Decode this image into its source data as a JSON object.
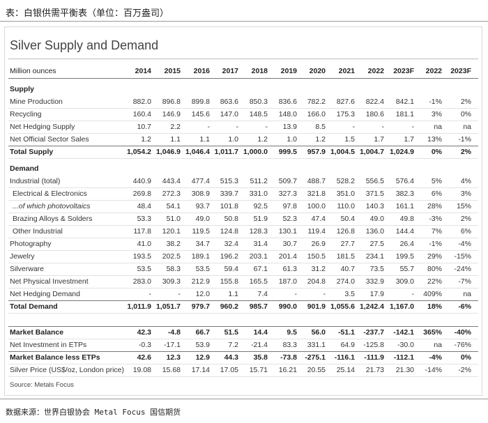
{
  "header": {
    "caption": "表：白银供需平衡表（单位：百万盎司）"
  },
  "table": {
    "title": "Silver Supply and Demand",
    "unit_label": "Million ounces",
    "columns": [
      "2014",
      "2015",
      "2016",
      "2017",
      "2018",
      "2019",
      "2020",
      "2021",
      "2022",
      "2023F",
      "2022",
      "2023F"
    ],
    "sections": [
      {
        "title": "Supply",
        "rows": [
          {
            "label": "Mine Production",
            "cells": [
              "882.0",
              "896.8",
              "899.8",
              "863.6",
              "850.3",
              "836.6",
              "782.2",
              "827.6",
              "822.4",
              "842.1",
              "-1%",
              "2%"
            ]
          },
          {
            "label": "Recycling",
            "cells": [
              "160.4",
              "146.9",
              "145.6",
              "147.0",
              "148.5",
              "148.0",
              "166.0",
              "175.3",
              "180.6",
              "181.1",
              "3%",
              "0%"
            ]
          },
          {
            "label": "Net Hedging Supply",
            "cells": [
              "10.7",
              "2.2",
              "-",
              "-",
              "-",
              "13.9",
              "8.5",
              "-",
              "-",
              "-",
              "na",
              "na"
            ]
          },
          {
            "label": "Net Official Sector Sales",
            "cells": [
              "1.2",
              "1.1",
              "1.1",
              "1.0",
              "1.2",
              "1.0",
              "1.2",
              "1.5",
              "1.7",
              "1.7",
              "13%",
              "-1%"
            ]
          },
          {
            "label": "Total Supply",
            "cells": [
              "1,054.2",
              "1,046.9",
              "1,046.4",
              "1,011.7",
              "1,000.0",
              "999.5",
              "957.9",
              "1,004.5",
              "1,004.7",
              "1,024.9",
              "0%",
              "2%"
            ]
          }
        ]
      },
      {
        "title": "Demand",
        "rows": [
          {
            "label": "Industrial (total)",
            "cells": [
              "440.9",
              "443.4",
              "477.4",
              "515.3",
              "511.2",
              "509.7",
              "488.7",
              "528.2",
              "556.5",
              "576.4",
              "5%",
              "4%"
            ]
          },
          {
            "label": "Electrical & Electronics",
            "cells": [
              "269.8",
              "272.3",
              "308.9",
              "339.7",
              "331.0",
              "327.3",
              "321.8",
              "351.0",
              "371.5",
              "382.3",
              "6%",
              "3%"
            ]
          },
          {
            "label": "...of which photovoltaics",
            "cells": [
              "48.4",
              "54.1",
              "93.7",
              "101.8",
              "92.5",
              "97.8",
              "100.0",
              "110.0",
              "140.3",
              "161.1",
              "28%",
              "15%"
            ]
          },
          {
            "label": "Brazing Alloys & Solders",
            "cells": [
              "53.3",
              "51.0",
              "49.0",
              "50.8",
              "51.9",
              "52.3",
              "47.4",
              "50.4",
              "49.0",
              "49.8",
              "-3%",
              "2%"
            ]
          },
          {
            "label": "Other Industrial",
            "cells": [
              "117.8",
              "120.1",
              "119.5",
              "124.8",
              "128.3",
              "130.1",
              "119.4",
              "126.8",
              "136.0",
              "144.4",
              "7%",
              "6%"
            ]
          },
          {
            "label": "Photography",
            "cells": [
              "41.0",
              "38.2",
              "34.7",
              "32.4",
              "31.4",
              "30.7",
              "26.9",
              "27.7",
              "27.5",
              "26.4",
              "-1%",
              "-4%"
            ]
          },
          {
            "label": "Jewelry",
            "cells": [
              "193.5",
              "202.5",
              "189.1",
              "196.2",
              "203.1",
              "201.4",
              "150.5",
              "181.5",
              "234.1",
              "199.5",
              "29%",
              "-15%"
            ]
          },
          {
            "label": "Silverware",
            "cells": [
              "53.5",
              "58.3",
              "53.5",
              "59.4",
              "67.1",
              "61.3",
              "31.2",
              "40.7",
              "73.5",
              "55.7",
              "80%",
              "-24%"
            ]
          },
          {
            "label": "Net Physical Investment",
            "cells": [
              "283.0",
              "309.3",
              "212.9",
              "155.8",
              "165.5",
              "187.0",
              "204.8",
              "274.0",
              "332.9",
              "309.0",
              "22%",
              "-7%"
            ]
          },
          {
            "label": "Net Hedging Demand",
            "cells": [
              "-",
              "-",
              "12.0",
              "1.1",
              "7.4",
              "-",
              "-",
              "3.5",
              "17.9",
              "-",
              "409%",
              "na"
            ]
          },
          {
            "label": "Total Demand",
            "cells": [
              "1,011.9",
              "1,051.7",
              "979.7",
              "960.2",
              "985.7",
              "990.0",
              "901.9",
              "1,055.6",
              "1,242.4",
              "1,167.0",
              "18%",
              "-6%"
            ]
          }
        ]
      },
      {
        "rows": [
          {
            "label": "Market Balance",
            "cells": [
              "42.3",
              "-4.8",
              "66.7",
              "51.5",
              "14.4",
              "9.5",
              "56.0",
              "-51.1",
              "-237.7",
              "-142.1",
              "365%",
              "-40%"
            ]
          },
          {
            "label": "Net Investment in ETPs",
            "cells": [
              "-0.3",
              "-17.1",
              "53.9",
              "7.2",
              "-21.4",
              "83.3",
              "331.1",
              "64.9",
              "-125.8",
              "-30.0",
              "na",
              "-76%"
            ]
          },
          {
            "label": "Market Balance less ETPs",
            "cells": [
              "42.6",
              "12.3",
              "12.9",
              "44.3",
              "35.8",
              "-73.8",
              "-275.1",
              "-116.1",
              "-111.9",
              "-112.1",
              "-4%",
              "0%"
            ]
          },
          {
            "label": "Silver Price (US$/oz, London price)",
            "cells": [
              "19.08",
              "15.68",
              "17.14",
              "17.05",
              "15.71",
              "16.21",
              "20.55",
              "25.14",
              "21.73",
              "21.30",
              "-14%",
              "-2%"
            ]
          }
        ]
      }
    ],
    "source": "Source: Metals Focus"
  },
  "footer": {
    "text": "数据来源：世界白银协会  Metal Focus  国信期货"
  }
}
